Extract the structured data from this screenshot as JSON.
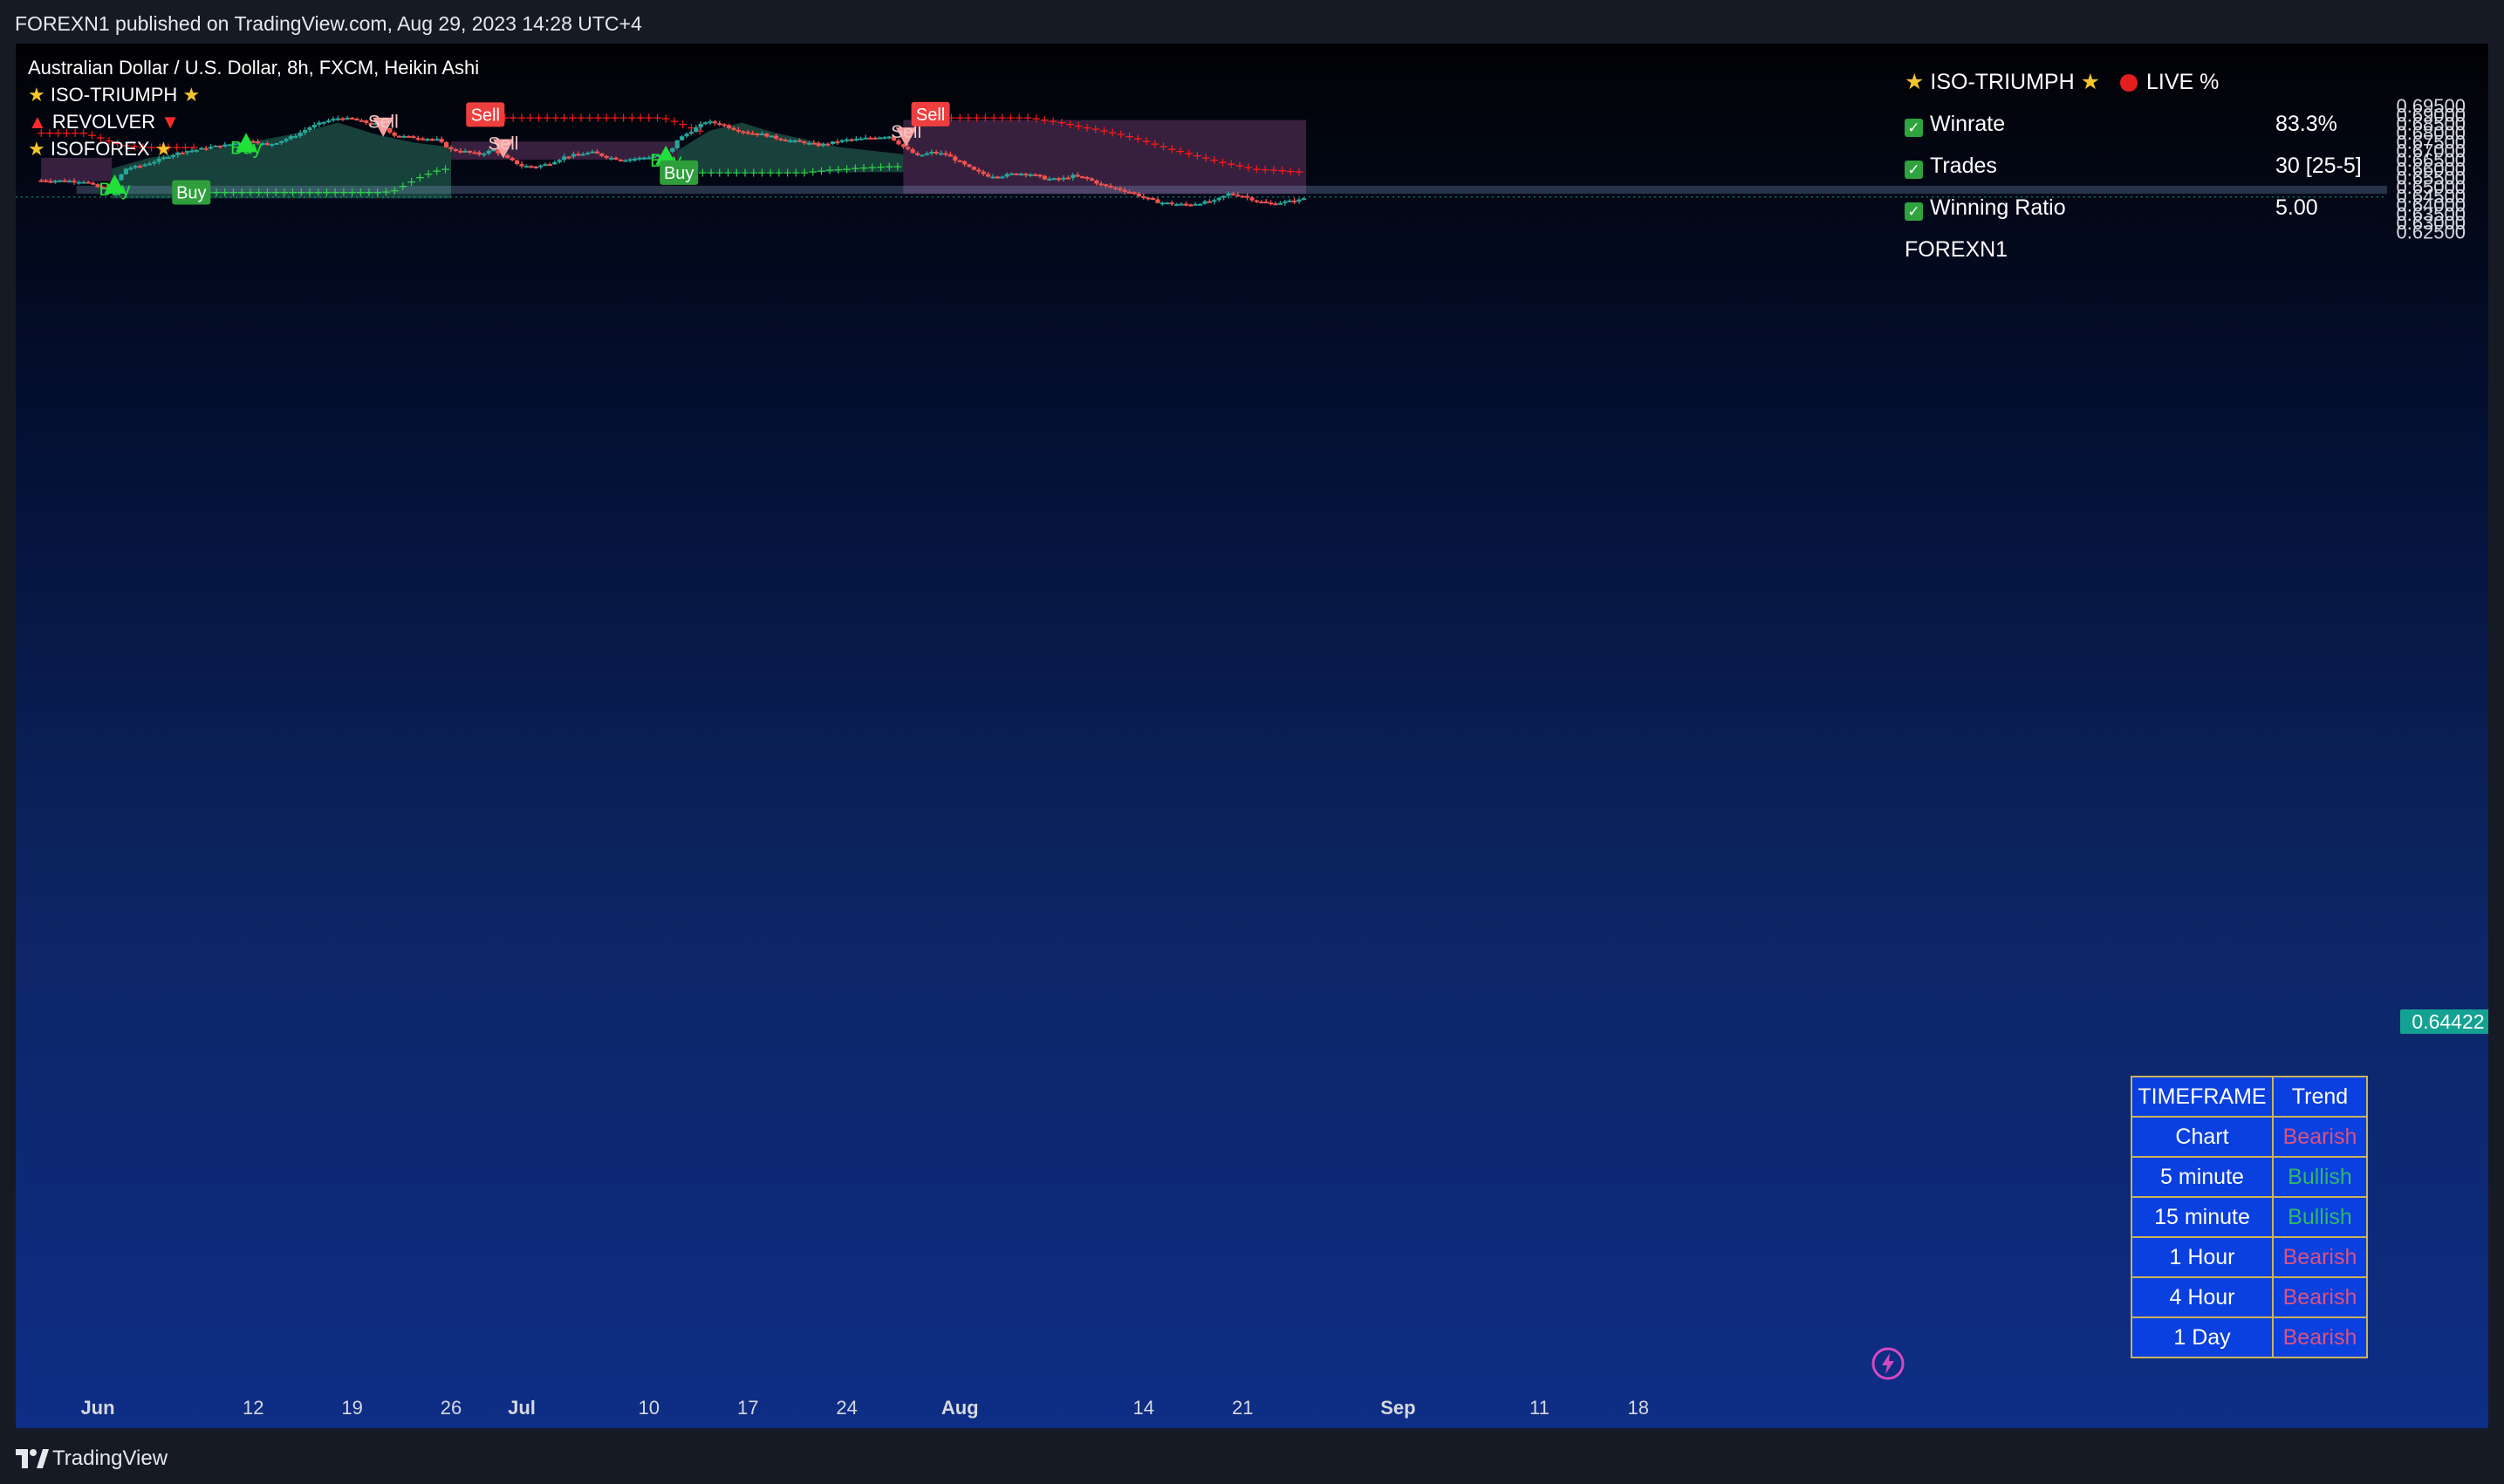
{
  "header": {
    "published": "FOREXN1 published on TradingView.com, Aug 29, 2023 14:28 UTC+4"
  },
  "legend": {
    "symbol": "Australian Dollar / U.S. Dollar, 8h, FXCM, Heikin Ashi",
    "ind1": "ISO-TRIUMPH",
    "ind2": "REVOLVER",
    "ind3": "ISOFOREX"
  },
  "stats": {
    "title": "ISO-TRIUMPH",
    "live": "LIVE %",
    "winrate_label": "Winrate",
    "winrate": "83.3%",
    "trades_label": "Trades",
    "trades": "30 [25-5]",
    "ratio_label": "Winning Ratio",
    "ratio": "5.00",
    "author": "FOREXN1"
  },
  "trend_table": {
    "h1": "TIMEFRAME",
    "h2": "Trend",
    "rows": [
      {
        "tf": "Chart",
        "trend": "Bearish"
      },
      {
        "tf": "5 minute",
        "trend": "Bullish"
      },
      {
        "tf": "15 minute",
        "trend": "Bullish"
      },
      {
        "tf": "1 Hour",
        "trend": "Bearish"
      },
      {
        "tf": "4 Hour",
        "trend": "Bearish"
      },
      {
        "tf": "1 Day",
        "trend": "Bearish"
      }
    ]
  },
  "footer": {
    "brand": "TradingView"
  },
  "colors": {
    "bull_candle": "#26a69a",
    "bear_candle": "#ef5350",
    "bull_signal": "#22e03a",
    "bear_signal": "#f7a0a0",
    "red_dots": "#ff1a1a",
    "green_dots": "#2fd24a",
    "cloud_green": "#1f5548",
    "cloud_red": "#4a2a4e",
    "price_tag": "#13a192"
  },
  "chart_data": {
    "type": "candlestick",
    "ylim": [
      0.625,
      0.695
    ],
    "y_ticks": [
      "0.69500",
      "0.69000",
      "0.68500",
      "0.68000",
      "0.67500",
      "0.67000",
      "0.66500",
      "0.66000",
      "0.65500",
      "0.65000",
      "0.64500",
      "0.64000",
      "0.63500",
      "0.63000",
      "0.62500"
    ],
    "x_ticks": [
      {
        "label": "Jun",
        "bold": true,
        "x": 0
      },
      {
        "label": "12",
        "bold": false,
        "x": 11
      },
      {
        "label": "19",
        "bold": false,
        "x": 18
      },
      {
        "label": "26",
        "bold": false,
        "x": 25
      },
      {
        "label": "Jul",
        "bold": true,
        "x": 30
      },
      {
        "label": "10",
        "bold": false,
        "x": 39
      },
      {
        "label": "17",
        "bold": false,
        "x": 46
      },
      {
        "label": "24",
        "bold": false,
        "x": 53
      },
      {
        "label": "Aug",
        "bold": true,
        "x": 61
      },
      {
        "label": "14",
        "bold": false,
        "x": 74
      },
      {
        "label": "21",
        "bold": false,
        "x": 81
      },
      {
        "label": "Sep",
        "bold": true,
        "x": 92
      },
      {
        "label": "11",
        "bold": false,
        "x": 102
      },
      {
        "label": "18",
        "bold": false,
        "x": 109
      }
    ],
    "last_price": "0.64422",
    "close_path": [
      [
        -4,
        0.6535
      ],
      [
        -1,
        0.653
      ],
      [
        0.2,
        0.649
      ],
      [
        1,
        0.6505
      ],
      [
        1.6,
        0.656
      ],
      [
        2,
        0.66
      ],
      [
        3,
        0.6615
      ],
      [
        4,
        0.664
      ],
      [
        5,
        0.667
      ],
      [
        6,
        0.6695
      ],
      [
        7,
        0.6705
      ],
      [
        8,
        0.672
      ],
      [
        9,
        0.673
      ],
      [
        10,
        0.6745
      ],
      [
        11,
        0.6755
      ],
      [
        12,
        0.673
      ],
      [
        13,
        0.6755
      ],
      [
        14,
        0.6785
      ],
      [
        15,
        0.683
      ],
      [
        16,
        0.686
      ],
      [
        17,
        0.688
      ],
      [
        18,
        0.6875
      ],
      [
        19,
        0.6855
      ],
      [
        20,
        0.6845
      ],
      [
        21,
        0.6785
      ],
      [
        22,
        0.6775
      ],
      [
        23,
        0.677
      ],
      [
        24,
        0.676
      ],
      [
        25,
        0.6705
      ],
      [
        26,
        0.6695
      ],
      [
        27,
        0.668
      ],
      [
        28,
        0.6705
      ],
      [
        29,
        0.6655
      ],
      [
        30,
        0.6615
      ],
      [
        31,
        0.661
      ],
      [
        32,
        0.663
      ],
      [
        33,
        0.6665
      ],
      [
        34,
        0.668
      ],
      [
        35,
        0.669
      ],
      [
        36,
        0.6665
      ],
      [
        37,
        0.665
      ],
      [
        38,
        0.6655
      ],
      [
        39,
        0.6665
      ],
      [
        40,
        0.668
      ],
      [
        40.6,
        0.67
      ],
      [
        41,
        0.676
      ],
      [
        42,
        0.681
      ],
      [
        43,
        0.686
      ],
      [
        44,
        0.685
      ],
      [
        45,
        0.682
      ],
      [
        46,
        0.68
      ],
      [
        47,
        0.679
      ],
      [
        48,
        0.677
      ],
      [
        49,
        0.6755
      ],
      [
        50,
        0.6745
      ],
      [
        51,
        0.673
      ],
      [
        52,
        0.6745
      ],
      [
        53,
        0.676
      ],
      [
        54,
        0.6765
      ],
      [
        55,
        0.6775
      ],
      [
        56,
        0.678
      ],
      [
        57,
        0.672
      ],
      [
        58,
        0.667
      ],
      [
        59,
        0.669
      ],
      [
        60,
        0.668
      ],
      [
        61,
        0.6635
      ],
      [
        62,
        0.659
      ],
      [
        63,
        0.656
      ],
      [
        64,
        0.656
      ],
      [
        65,
        0.6575
      ],
      [
        66,
        0.657
      ],
      [
        67,
        0.6545
      ],
      [
        68,
        0.654
      ],
      [
        69,
        0.656
      ],
      [
        70,
        0.6545
      ],
      [
        71,
        0.651
      ],
      [
        72,
        0.649
      ],
      [
        73,
        0.647
      ],
      [
        74,
        0.644
      ],
      [
        75,
        0.6415
      ],
      [
        76,
        0.6405
      ],
      [
        77,
        0.64
      ],
      [
        78,
        0.641
      ],
      [
        79,
        0.642
      ],
      [
        80,
        0.646
      ],
      [
        81,
        0.645
      ],
      [
        82,
        0.642
      ],
      [
        83,
        0.6405
      ],
      [
        84,
        0.6415
      ],
      [
        85,
        0.6425
      ],
      [
        85.5,
        0.6442
      ]
    ],
    "red_stepline": [
      [
        -4,
        0.68
      ],
      [
        -1,
        0.68
      ],
      [
        0,
        0.678
      ],
      [
        1,
        0.675
      ],
      [
        2,
        0.673
      ],
      [
        3,
        0.672
      ],
      [
        6,
        0.672
      ],
      [
        7,
        0.672
      ]
    ],
    "red_stepline2": [
      [
        27,
        0.6885
      ],
      [
        40,
        0.6885
      ],
      [
        41,
        0.686
      ],
      [
        42,
        0.683
      ],
      [
        43,
        0.68
      ]
    ],
    "red_stepline3": [
      [
        58,
        0.6885
      ],
      [
        66,
        0.6885
      ],
      [
        68,
        0.686
      ],
      [
        70,
        0.683
      ],
      [
        72,
        0.68
      ],
      [
        74,
        0.676
      ],
      [
        76,
        0.671
      ],
      [
        78,
        0.667
      ],
      [
        80,
        0.663
      ],
      [
        82,
        0.66
      ],
      [
        84,
        0.659
      ],
      [
        85.5,
        0.658
      ]
    ],
    "green_stepline": [
      [
        6,
        0.647
      ],
      [
        20,
        0.647
      ],
      [
        21,
        0.648
      ],
      [
        22,
        0.652
      ],
      [
        23,
        0.656
      ],
      [
        24,
        0.659
      ],
      [
        25,
        0.6605
      ]
    ],
    "green_stepline2": [
      [
        41,
        0.658
      ],
      [
        50,
        0.658
      ],
      [
        52,
        0.6595
      ],
      [
        54,
        0.6605
      ],
      [
        55,
        0.661
      ],
      [
        57,
        0.6615
      ]
    ],
    "cloud_green": [
      {
        "x0": 1,
        "x1": 25,
        "top": [
          0.66,
          0.666,
          0.669,
          0.672,
          0.676,
          0.68,
          0.6855,
          0.679,
          0.6745,
          0.672
        ],
        "bottom": 0.6435
      },
      {
        "x0": 41,
        "x1": 57,
        "top": [
          0.67,
          0.681,
          0.6855,
          0.68,
          0.676,
          0.672,
          0.67,
          0.668
        ],
        "bottom": 0.658
      }
    ],
    "cloud_red": [
      {
        "x0": -4,
        "x1": 1,
        "top": 0.666,
        "bottom": 0.653
      },
      {
        "x0": 25,
        "x1": 41,
        "top": 0.675,
        "bottom": 0.665
      },
      {
        "x0": 57,
        "x1": 85.5,
        "top": 0.687,
        "bottom": 0.646
      }
    ],
    "zone": {
      "y_top": 0.6505,
      "y_bottom": 0.646
    },
    "signals": [
      {
        "type": "Buy",
        "x": 1.2,
        "y": 0.651,
        "label_y": 0.649
      },
      {
        "type": "Buy",
        "x": 10.5,
        "y": 0.674,
        "label_y": 0.672
      },
      {
        "type": "Buy",
        "x": 40.2,
        "y": 0.667,
        "label_y": 0.665
      },
      {
        "type": "Sell",
        "x": 20.2,
        "y": 0.6835,
        "label_y": 0.6855
      },
      {
        "type": "Sell",
        "x": 28.7,
        "y": 0.6715,
        "label_y": 0.6735
      },
      {
        "type": "Sell",
        "x": 57.2,
        "y": 0.678,
        "label_y": 0.68
      }
    ],
    "tags": [
      {
        "type": "Sell",
        "x": 27.3,
        "y": 0.69
      },
      {
        "type": "Sell",
        "x": 58.8,
        "y": 0.6902
      },
      {
        "type": "Buy",
        "x": 6.5,
        "y": 0.6468
      },
      {
        "type": "Buy",
        "x": 41.0,
        "y": 0.6578
      }
    ]
  }
}
